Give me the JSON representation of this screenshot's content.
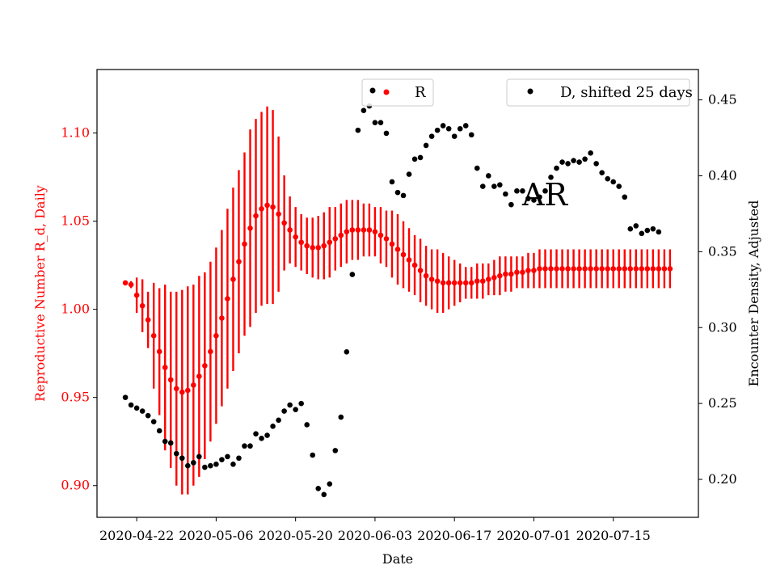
{
  "chart_data": {
    "type": "scatter",
    "xlabel": "Date",
    "ylabel_left": "Reproductive Number R_d, Daily",
    "ylabel_right": "Encounter Density, Adjusted",
    "annotation": "AR",
    "grid": false,
    "xlim": [
      "2020-04-15",
      "2020-07-30"
    ],
    "ylim_left": [
      0.882,
      1.136
    ],
    "ylim_right": [
      0.175,
      0.47
    ],
    "x_ticks": [
      "2020-04-22",
      "2020-05-06",
      "2020-05-20",
      "2020-06-03",
      "2020-06-17",
      "2020-07-01",
      "2020-07-15"
    ],
    "y_ticks_left": [
      "0.90",
      "0.95",
      "1.00",
      "1.05",
      "1.10"
    ],
    "y_ticks_right": [
      "0.20",
      "0.25",
      "0.30",
      "0.35",
      "0.40",
      "0.45"
    ],
    "colors": {
      "R": "#ff0000",
      "D": "#000000",
      "left_axis": "#ff0000",
      "right_axis": "#000000"
    },
    "legends": [
      {
        "position": "top-center",
        "entries": [
          {
            "label": "R",
            "markers": [
              "#000000",
              "#ff0000"
            ]
          }
        ]
      },
      {
        "position": "top-right",
        "entries": [
          {
            "label": "D, shifted 25 days",
            "markers": [
              "#000000"
            ]
          }
        ]
      }
    ],
    "series": [
      {
        "name": "R",
        "axis": "left",
        "start_date": "2020-04-20",
        "y": [
          1.015,
          1.014,
          1.008,
          1.002,
          0.994,
          0.985,
          0.976,
          0.967,
          0.96,
          0.955,
          0.953,
          0.954,
          0.957,
          0.962,
          0.968,
          0.976,
          0.985,
          0.995,
          1.006,
          1.017,
          1.027,
          1.037,
          1.046,
          1.053,
          1.057,
          1.059,
          1.058,
          1.054,
          1.049,
          1.045,
          1.041,
          1.038,
          1.036,
          1.035,
          1.035,
          1.036,
          1.038,
          1.04,
          1.042,
          1.044,
          1.045,
          1.045,
          1.045,
          1.045,
          1.044,
          1.042,
          1.04,
          1.037,
          1.034,
          1.031,
          1.028,
          1.025,
          1.022,
          1.019,
          1.017,
          1.016,
          1.015,
          1.015,
          1.015,
          1.015,
          1.015,
          1.015,
          1.016,
          1.016,
          1.017,
          1.018,
          1.019,
          1.02,
          1.02,
          1.021,
          1.021,
          1.022,
          1.022,
          1.023,
          1.023,
          1.023,
          1.023,
          1.023,
          1.023,
          1.023,
          1.023,
          1.023,
          1.023,
          1.023,
          1.023,
          1.023,
          1.023,
          1.023,
          1.023,
          1.023,
          1.023,
          1.023,
          1.023,
          1.023,
          1.023,
          1.023,
          1.023
        ],
        "err_low": [
          1.015,
          1.012,
          0.998,
          0.987,
          0.978,
          0.955,
          0.94,
          0.92,
          0.91,
          0.9,
          0.895,
          0.895,
          0.9,
          0.905,
          0.915,
          0.925,
          0.935,
          0.945,
          0.955,
          0.965,
          0.975,
          0.985,
          0.99,
          0.998,
          1.002,
          1.003,
          1.003,
          1.01,
          1.022,
          1.026,
          1.024,
          1.022,
          1.02,
          1.018,
          1.017,
          1.017,
          1.018,
          1.022,
          1.024,
          1.026,
          1.028,
          1.028,
          1.03,
          1.03,
          1.03,
          1.026,
          1.024,
          1.018,
          1.014,
          1.012,
          1.01,
          1.008,
          1.004,
          1.002,
          1.0,
          0.998,
          0.998,
          1.0,
          1.002,
          1.004,
          1.006,
          1.006,
          1.006,
          1.006,
          1.008,
          1.008,
          1.008,
          1.01,
          1.01,
          1.012,
          1.012,
          1.012,
          1.012,
          1.012,
          1.012,
          1.012,
          1.012,
          1.012,
          1.012,
          1.012,
          1.012,
          1.012,
          1.012,
          1.012,
          1.012,
          1.012,
          1.012,
          1.012,
          1.012,
          1.012,
          1.012,
          1.012,
          1.012,
          1.012,
          1.012,
          1.012,
          1.012
        ],
        "err_high": [
          1.015,
          1.016,
          1.018,
          1.017,
          1.01,
          1.015,
          1.012,
          1.014,
          1.01,
          1.01,
          1.011,
          1.013,
          1.014,
          1.019,
          1.021,
          1.027,
          1.035,
          1.045,
          1.057,
          1.069,
          1.079,
          1.089,
          1.102,
          1.108,
          1.112,
          1.115,
          1.113,
          1.098,
          1.076,
          1.064,
          1.058,
          1.054,
          1.052,
          1.052,
          1.053,
          1.055,
          1.058,
          1.058,
          1.06,
          1.062,
          1.062,
          1.062,
          1.06,
          1.06,
          1.058,
          1.058,
          1.056,
          1.056,
          1.054,
          1.05,
          1.046,
          1.042,
          1.04,
          1.036,
          1.034,
          1.034,
          1.032,
          1.03,
          1.028,
          1.026,
          1.024,
          1.024,
          1.026,
          1.026,
          1.026,
          1.028,
          1.03,
          1.03,
          1.03,
          1.03,
          1.03,
          1.032,
          1.032,
          1.034,
          1.034,
          1.034,
          1.034,
          1.034,
          1.034,
          1.034,
          1.034,
          1.034,
          1.034,
          1.034,
          1.034,
          1.034,
          1.034,
          1.034,
          1.034,
          1.034,
          1.034,
          1.034,
          1.034,
          1.034,
          1.034,
          1.034,
          1.034
        ]
      },
      {
        "name": "D, shifted 25 days",
        "axis": "right",
        "start_date": "2020-04-20",
        "y": [
          0.254,
          0.249,
          0.247,
          0.245,
          0.242,
          0.238,
          0.232,
          0.225,
          0.224,
          0.217,
          0.214,
          0.209,
          0.211,
          0.215,
          0.208,
          0.209,
          0.21,
          0.213,
          0.215,
          0.21,
          0.214,
          0.222,
          0.222,
          0.23,
          0.227,
          0.229,
          0.235,
          0.239,
          0.245,
          0.249,
          0.246,
          0.25,
          0.236,
          0.216,
          0.194,
          0.19,
          0.197,
          0.219,
          0.241,
          0.284,
          0.335,
          0.43,
          0.443,
          0.446,
          0.435,
          0.435,
          0.428,
          0.396,
          0.389,
          0.387,
          0.401,
          0.411,
          0.412,
          0.42,
          0.426,
          0.43,
          0.433,
          0.431,
          0.426,
          0.431,
          0.433,
          0.427,
          0.405,
          0.393,
          0.4,
          0.393,
          0.394,
          0.388,
          0.381,
          0.39,
          0.39,
          0.385,
          0.384,
          0.386,
          0.39,
          0.399,
          0.405,
          0.409,
          0.408,
          0.41,
          0.409,
          0.411,
          0.415,
          0.408,
          0.402,
          0.398,
          0.396,
          0.393,
          0.386,
          0.365,
          0.367,
          0.362,
          0.364,
          0.365,
          0.363
        ]
      }
    ]
  }
}
